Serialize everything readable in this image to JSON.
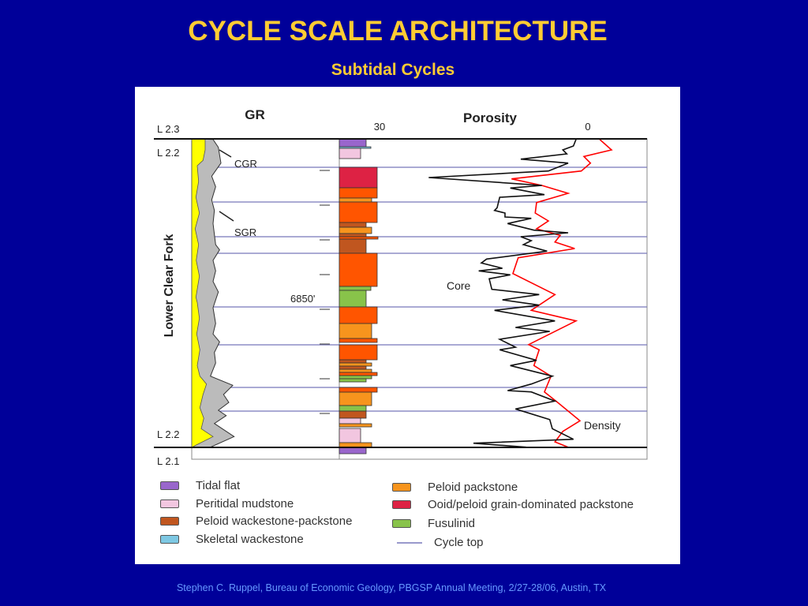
{
  "slide": {
    "title": "CYCLE SCALE ARCHITECTURE",
    "subtitle": "Subtidal Cycles",
    "footer": "Stephen C. Ruppel, Bureau of Economic Geology, PBGSP Annual Meeting, 2/27-28/06, Austin, TX"
  },
  "log": {
    "gr_header": "GR",
    "porosity_header": "Porosity",
    "porosity_scale_left": "30",
    "porosity_scale_right": "0",
    "formation": "Lower Clear Fork",
    "markers": [
      "L 2.3",
      "L 2.2",
      "L 2.2",
      "L 2.1"
    ],
    "depth_label": "6850'",
    "curve_labels": {
      "cgr": "CGR",
      "sgr": "SGR",
      "core": "Core",
      "density": "Density"
    }
  },
  "legend": [
    {
      "label": "Tidal flat",
      "color": "#9966cc"
    },
    {
      "label": "Peritidal mudstone",
      "color": "#f2c6e0"
    },
    {
      "label": "Peloid wackestone-packstone",
      "color": "#c0561f"
    },
    {
      "label": "Skeletal wackestone",
      "color": "#7ec8e3"
    },
    {
      "label": "Peloid packstone",
      "color": "#f7941d"
    },
    {
      "label": "Ooid/peloid grain-dominated packstone",
      "color": "#dd2244"
    },
    {
      "label": "Fusulinid",
      "color": "#88c34a"
    },
    {
      "label": "Cycle top",
      "color": "#9999cc"
    }
  ],
  "colors": {
    "background": "#000099",
    "title": "#ffcc33",
    "footer": "#6699ff",
    "gr_sgr_fill": "#bbbbbb",
    "gr_cgr_fill": "#ffff00",
    "core_curve": "#111111",
    "density_curve": "#ff0000",
    "grain_packstone_dark": "#ff5500"
  }
}
